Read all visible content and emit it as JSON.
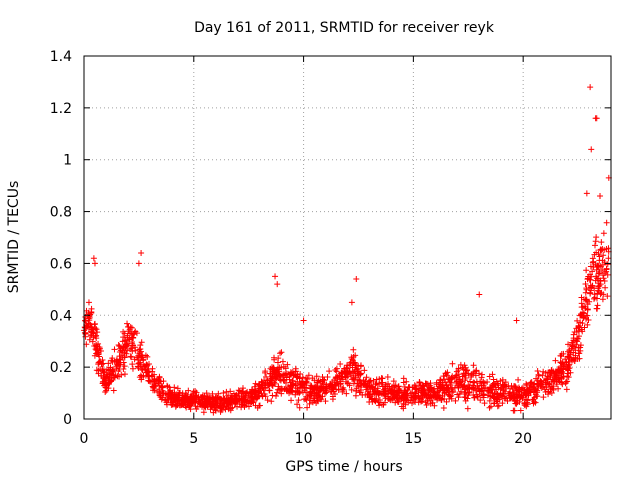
{
  "chart_data": {
    "type": "scatter",
    "title": "Day 161 of 2011, SRMTID for receiver reyk",
    "xlabel": "GPS time / hours",
    "ylabel": "SRMTID / TECUs",
    "xlim": [
      0,
      24
    ],
    "ylim": [
      0,
      1.4
    ],
    "x_ticks": [
      0,
      5,
      10,
      15,
      20
    ],
    "y_ticks": [
      0,
      0.2,
      0.4,
      0.6,
      0.8,
      1,
      1.2,
      1.4
    ],
    "x_tick_labels": [
      "0",
      "5",
      "10",
      "15",
      "20"
    ],
    "y_tick_labels": [
      "0",
      "0.2",
      "0.4",
      "0.6",
      "0.8",
      "1",
      "1.2",
      "1.4"
    ],
    "grid": true,
    "marker": "plus",
    "color": "#ff0000",
    "envelope": [
      {
        "x": 0.0,
        "y": 0.34,
        "spread": 0.1
      },
      {
        "x": 0.3,
        "y": 0.4,
        "spread": 0.12
      },
      {
        "x": 0.6,
        "y": 0.25,
        "spread": 0.12
      },
      {
        "x": 1.0,
        "y": 0.14,
        "spread": 0.06
      },
      {
        "x": 1.5,
        "y": 0.2,
        "spread": 0.1
      },
      {
        "x": 2.0,
        "y": 0.32,
        "spread": 0.14
      },
      {
        "x": 2.5,
        "y": 0.24,
        "spread": 0.1
      },
      {
        "x": 3.0,
        "y": 0.16,
        "spread": 0.08
      },
      {
        "x": 4.0,
        "y": 0.08,
        "spread": 0.05
      },
      {
        "x": 5.0,
        "y": 0.07,
        "spread": 0.05
      },
      {
        "x": 6.0,
        "y": 0.06,
        "spread": 0.05
      },
      {
        "x": 7.0,
        "y": 0.07,
        "spread": 0.05
      },
      {
        "x": 8.0,
        "y": 0.1,
        "spread": 0.07
      },
      {
        "x": 8.8,
        "y": 0.18,
        "spread": 0.12
      },
      {
        "x": 9.5,
        "y": 0.14,
        "spread": 0.1
      },
      {
        "x": 10.5,
        "y": 0.1,
        "spread": 0.08
      },
      {
        "x": 11.5,
        "y": 0.14,
        "spread": 0.1
      },
      {
        "x": 12.3,
        "y": 0.18,
        "spread": 0.12
      },
      {
        "x": 13.0,
        "y": 0.11,
        "spread": 0.07
      },
      {
        "x": 14.5,
        "y": 0.1,
        "spread": 0.07
      },
      {
        "x": 16.0,
        "y": 0.1,
        "spread": 0.07
      },
      {
        "x": 17.0,
        "y": 0.14,
        "spread": 0.1
      },
      {
        "x": 18.0,
        "y": 0.12,
        "spread": 0.09
      },
      {
        "x": 19.0,
        "y": 0.1,
        "spread": 0.08
      },
      {
        "x": 20.0,
        "y": 0.09,
        "spread": 0.07
      },
      {
        "x": 21.0,
        "y": 0.14,
        "spread": 0.08
      },
      {
        "x": 22.0,
        "y": 0.2,
        "spread": 0.1
      },
      {
        "x": 22.6,
        "y": 0.35,
        "spread": 0.15
      },
      {
        "x": 23.2,
        "y": 0.55,
        "spread": 0.22
      },
      {
        "x": 23.9,
        "y": 0.6,
        "spread": 0.2
      }
    ],
    "outliers": [
      {
        "x": 23.05,
        "y": 1.28
      },
      {
        "x": 23.3,
        "y": 1.16
      },
      {
        "x": 23.35,
        "y": 1.16
      },
      {
        "x": 23.1,
        "y": 1.04
      },
      {
        "x": 23.9,
        "y": 0.93
      },
      {
        "x": 23.5,
        "y": 0.86
      },
      {
        "x": 22.9,
        "y": 0.87
      },
      {
        "x": 0.45,
        "y": 0.62
      },
      {
        "x": 0.5,
        "y": 0.6
      },
      {
        "x": 2.6,
        "y": 0.64
      },
      {
        "x": 2.5,
        "y": 0.6
      },
      {
        "x": 8.7,
        "y": 0.55
      },
      {
        "x": 8.8,
        "y": 0.52
      },
      {
        "x": 12.4,
        "y": 0.54
      },
      {
        "x": 12.2,
        "y": 0.45
      },
      {
        "x": 18.0,
        "y": 0.48
      },
      {
        "x": 10.0,
        "y": 0.38
      },
      {
        "x": 19.7,
        "y": 0.38
      }
    ],
    "sample_count": 2200
  }
}
